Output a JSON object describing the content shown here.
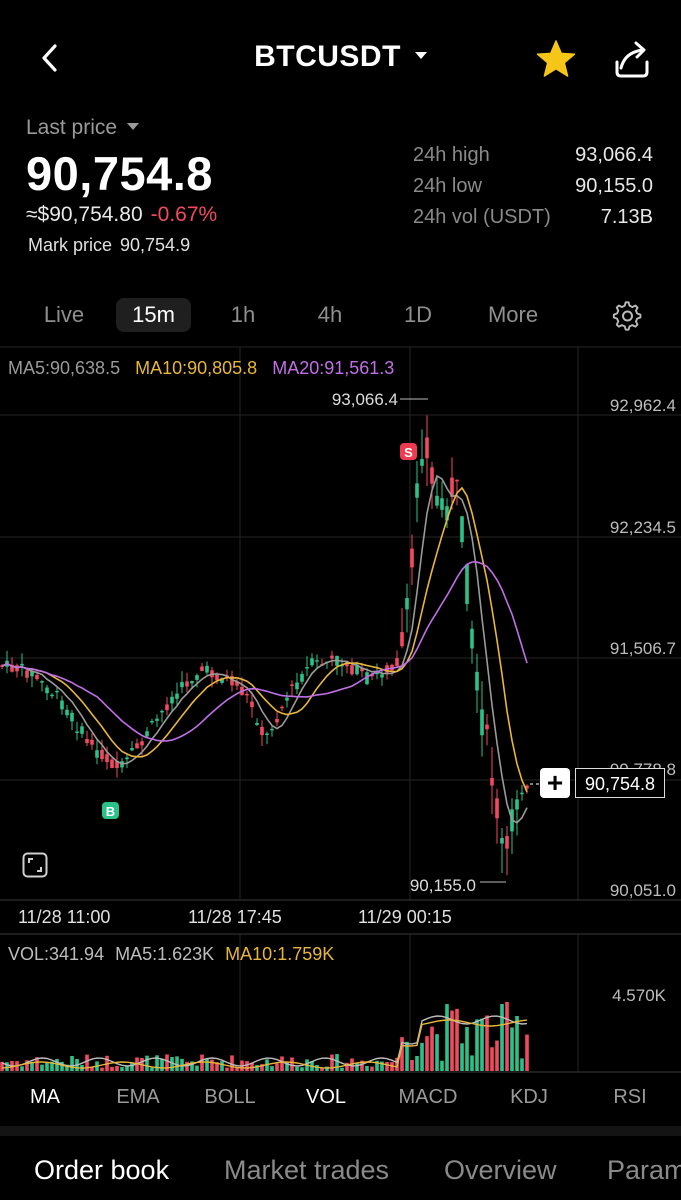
{
  "header": {
    "back_icon": "chevron-left-icon",
    "symbol": "BTCUSDT",
    "favorite_icon": "star-icon",
    "favorite_color": "#f5c518",
    "share_icon": "share-icon"
  },
  "price": {
    "label": "Last price",
    "last": "90,754.8",
    "usd": "≈$90,754.80",
    "change": "-0.67%",
    "change_color": "#f2495e",
    "mark_label": "Mark price",
    "mark_value": "90,754.9"
  },
  "stats": [
    {
      "label": "24h high",
      "value": "93,066.4"
    },
    {
      "label": "24h low",
      "value": "90,155.0"
    },
    {
      "label": "24h vol (USDT)",
      "value": "7.13B"
    }
  ],
  "timeframes": [
    "Live",
    "15m",
    "1h",
    "4h",
    "1D",
    "More"
  ],
  "active_timeframe": "15m",
  "settings_icon": "gear-icon",
  "ma_legend": {
    "ma5": "MA5:90,638.5",
    "ma10": "MA10:90,805.8",
    "ma20": "MA20:91,561.3",
    "ma5_color": "#9a9a9a",
    "ma10_color": "#e8b73a",
    "ma20_color": "#c06fe6"
  },
  "price_axis": [
    "92,962.4",
    "92,234.5",
    "91,506.7",
    "90,778.8",
    "90,051.0"
  ],
  "high_marker": "93,066.4",
  "low_marker": "90,155.0",
  "sell_marker": "S",
  "buy_marker": "B",
  "cursor_price": "90,754.8",
  "time_axis": [
    "11/28 11:00",
    "11/28 17:45",
    "11/29 00:15"
  ],
  "vol_legend": {
    "vol": "VOL:341.94",
    "ma5": "MA5:1.623K",
    "ma10": "MA10:1.759K"
  },
  "vol_axis_max": "4.570K",
  "indicators": [
    "MA",
    "EMA",
    "BOLL",
    "VOL",
    "MACD",
    "KDJ",
    "RSI"
  ],
  "active_indicators": [
    "MA",
    "VOL"
  ],
  "bottom_tabs": [
    "Order book",
    "Market trades",
    "Overview",
    "Param"
  ],
  "active_bottom_tab": "Order book",
  "colors": {
    "up": "#2bc28a",
    "down": "#f2495e",
    "grid": "#262626"
  }
}
